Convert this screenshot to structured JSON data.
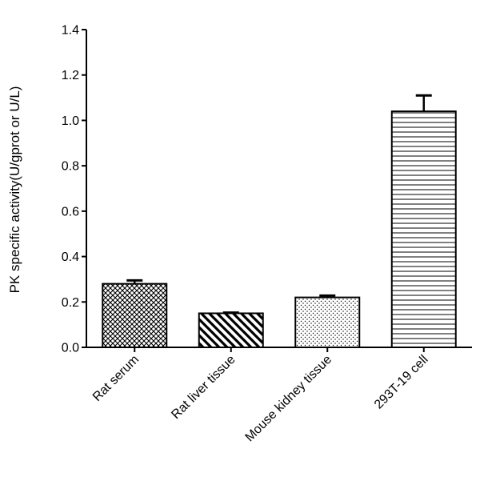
{
  "chart_data": {
    "type": "bar",
    "title": "",
    "xlabel": "",
    "ylabel": "PK specific activity(U/gprot or U/L)",
    "categories": [
      "Rat serum",
      "Rat liver tissue",
      "Mouse kidney tissue",
      "293T-19 cell"
    ],
    "values": [
      0.28,
      0.15,
      0.22,
      1.04
    ],
    "error_upper": [
      0.015,
      0.003,
      0.008,
      0.07
    ],
    "patterns": [
      "crosshatch",
      "diagonal-stripes",
      "dots",
      "horizontal-lines"
    ],
    "ylim": [
      0,
      1.4
    ],
    "yticks": [
      0.0,
      0.2,
      0.4,
      0.6,
      0.8,
      1.0,
      1.2,
      1.4
    ],
    "ytick_labels": [
      "0.0",
      "0.2",
      "0.4",
      "0.6",
      "0.8",
      "1.0",
      "1.2",
      "1.4"
    ],
    "grid": false,
    "legend": "none",
    "colors": {
      "bar_stroke": "#000000",
      "bar_fill": "#ffffff",
      "pattern": "#000000"
    }
  }
}
